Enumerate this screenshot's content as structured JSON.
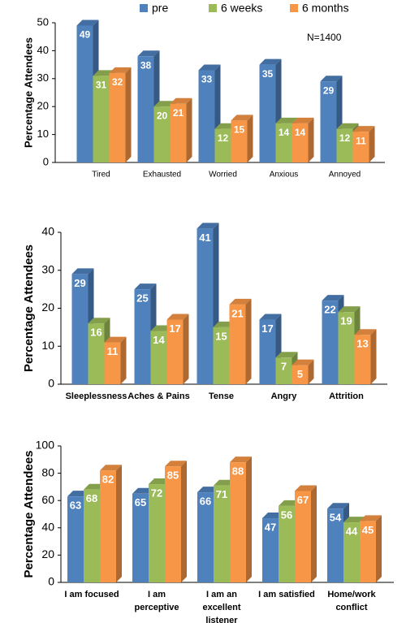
{
  "chart_data": [
    {
      "type": "bar",
      "ylabel": "Percentage Attendees",
      "annotation": "N=1400",
      "categories": [
        "Tired",
        "Exhausted",
        "Worried",
        "Anxious",
        "Annoyed"
      ],
      "series": [
        {
          "name": "pre",
          "color": "#4f81bd",
          "values": [
            49,
            38,
            33,
            35,
            29
          ]
        },
        {
          "name": "6 weeks",
          "color": "#9bbb59",
          "values": [
            31,
            20,
            12,
            14,
            12
          ]
        },
        {
          "name": "6 months",
          "color": "#f79646",
          "values": [
            32,
            21,
            15,
            14,
            11
          ]
        }
      ],
      "ylim": [
        0,
        50
      ],
      "yticks": [
        0,
        10,
        20,
        30,
        40,
        50
      ],
      "legend": "top"
    },
    {
      "type": "bar",
      "ylabel": "Percentage Attendees",
      "categories": [
        "Sleeplessness",
        "Aches & Pains",
        "Tense",
        "Angry",
        "Attrition"
      ],
      "series": [
        {
          "color": "#4f81bd",
          "values": [
            29,
            25,
            41,
            17,
            22
          ]
        },
        {
          "color": "#9bbb59",
          "values": [
            16,
            14,
            15,
            7,
            19
          ]
        },
        {
          "color": "#f79646",
          "values": [
            11,
            17,
            21,
            5,
            13
          ]
        }
      ],
      "ylim": [
        0,
        40
      ],
      "yticks": [
        0,
        10,
        20,
        30,
        40
      ]
    },
    {
      "type": "bar",
      "ylabel": "Percentage Attendees",
      "categories": [
        "I am focused",
        "I am perceptive",
        "I am an excellent listener",
        "I am satisfied",
        "Home/work conflict"
      ],
      "series": [
        {
          "color": "#4f81bd",
          "values": [
            63,
            65,
            66,
            47,
            54
          ]
        },
        {
          "color": "#9bbb59",
          "values": [
            68,
            72,
            71,
            56,
            44
          ]
        },
        {
          "color": "#f79646",
          "values": [
            82,
            85,
            88,
            67,
            45
          ]
        }
      ],
      "ylim": [
        0,
        100
      ],
      "yticks": [
        0,
        20,
        40,
        60,
        80,
        100
      ]
    }
  ]
}
